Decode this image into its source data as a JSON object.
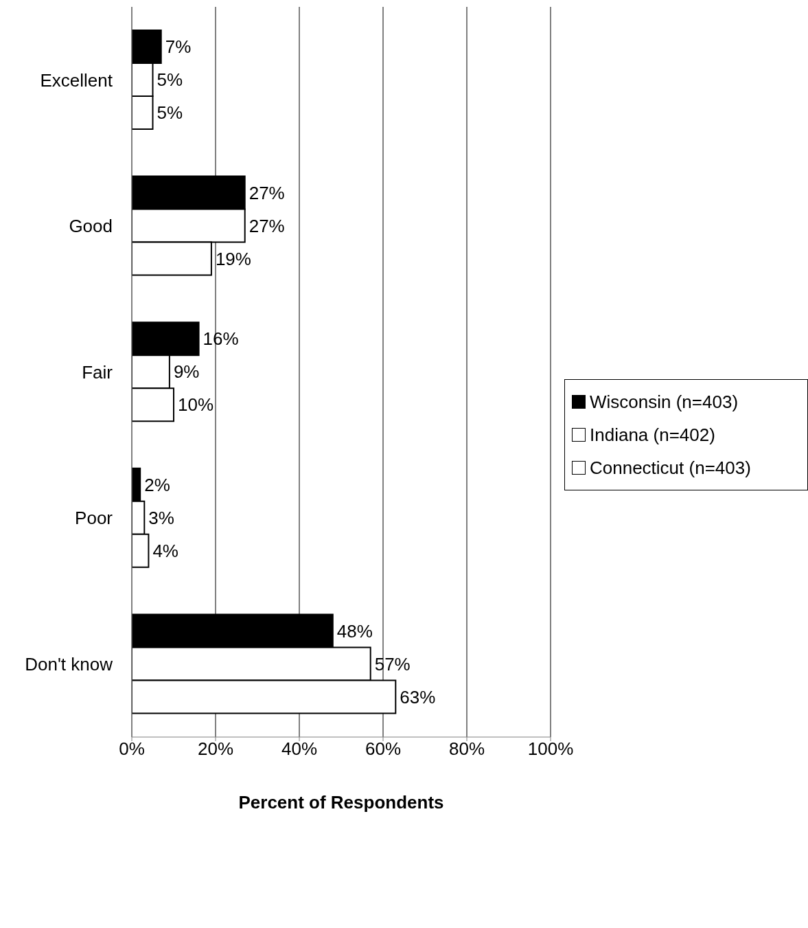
{
  "chart_data": {
    "type": "bar",
    "orientation": "horizontal",
    "xlabel": "Percent of Respondents",
    "categories": [
      "Excellent",
      "Good",
      "Fair",
      "Poor",
      "Don't know"
    ],
    "series": [
      {
        "name": "Wisconsin (n=403)",
        "color": "#000000",
        "values": [
          7,
          27,
          16,
          2,
          48
        ],
        "value_labels": [
          "7%",
          "27%",
          "16%",
          "2%",
          "48%"
        ]
      },
      {
        "name": "Indiana (n=402)",
        "color": "#ffffff",
        "values": [
          5,
          27,
          9,
          3,
          57
        ],
        "value_labels": [
          "5%",
          "27%",
          "9%",
          "3%",
          "57%"
        ]
      },
      {
        "name": "Connecticut (n=403)",
        "color": "#ffffff",
        "values": [
          5,
          19,
          10,
          4,
          63
        ],
        "value_labels": [
          "5%",
          "19%",
          "10%",
          "4%",
          "63%"
        ]
      }
    ],
    "xlim": [
      0,
      100
    ],
    "xticks": [
      {
        "value": 0,
        "label": "0%"
      },
      {
        "value": 20,
        "label": "20%"
      },
      {
        "value": 40,
        "label": "40%"
      },
      {
        "value": 60,
        "label": "60%"
      },
      {
        "value": 80,
        "label": "80%"
      },
      {
        "value": 100,
        "label": "100%"
      }
    ],
    "grid": "x",
    "legend": "right"
  }
}
